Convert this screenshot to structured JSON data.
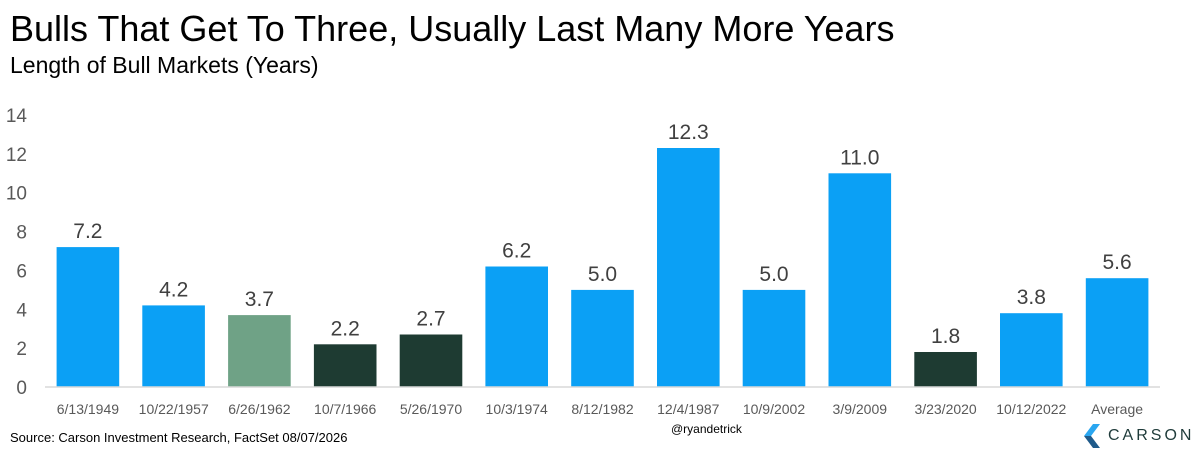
{
  "header": {
    "title": "Bulls That Get To Three, Usually Last Many More Years",
    "subtitle": "Length of Bull Markets (Years)"
  },
  "footer": {
    "source": "Source: Carson Investment Research, FactSet 08/07/2026",
    "handle": "@ryandetrick",
    "logo_text": "CARSON"
  },
  "colors": {
    "blue": "#0ba0f5",
    "green": "#6fa286",
    "dark": "#1e3b32",
    "axis": "#d9d9d9",
    "tick_text": "#595959",
    "label_text": "#404040"
  },
  "chart_data": {
    "type": "bar",
    "title": "Bulls That Get To Three, Usually Last Many More Years",
    "subtitle": "Length of Bull Markets (Years)",
    "xlabel": "",
    "ylabel": "",
    "ylim": [
      0,
      14
    ],
    "yticks": [
      0,
      2,
      4,
      6,
      8,
      10,
      12,
      14
    ],
    "grid": false,
    "legend": "none",
    "categories": [
      "6/13/1949",
      "10/22/1957",
      "6/26/1962",
      "10/7/1966",
      "5/26/1970",
      "10/3/1974",
      "8/12/1982",
      "12/4/1987",
      "10/9/2002",
      "3/9/2009",
      "3/23/2020",
      "10/12/2022",
      "Average"
    ],
    "values": [
      7.2,
      4.2,
      3.7,
      2.2,
      2.7,
      6.2,
      5.0,
      12.3,
      5.0,
      11.0,
      1.8,
      3.8,
      5.6
    ],
    "data_labels": [
      "7.2",
      "4.2",
      "3.7",
      "2.2",
      "2.7",
      "6.2",
      "5.0",
      "12.3",
      "5.0",
      "11.0",
      "1.8",
      "3.8",
      "5.6"
    ],
    "bar_colors": [
      "blue",
      "blue",
      "green",
      "dark",
      "dark",
      "blue",
      "blue",
      "blue",
      "blue",
      "blue",
      "dark",
      "blue",
      "blue"
    ]
  }
}
